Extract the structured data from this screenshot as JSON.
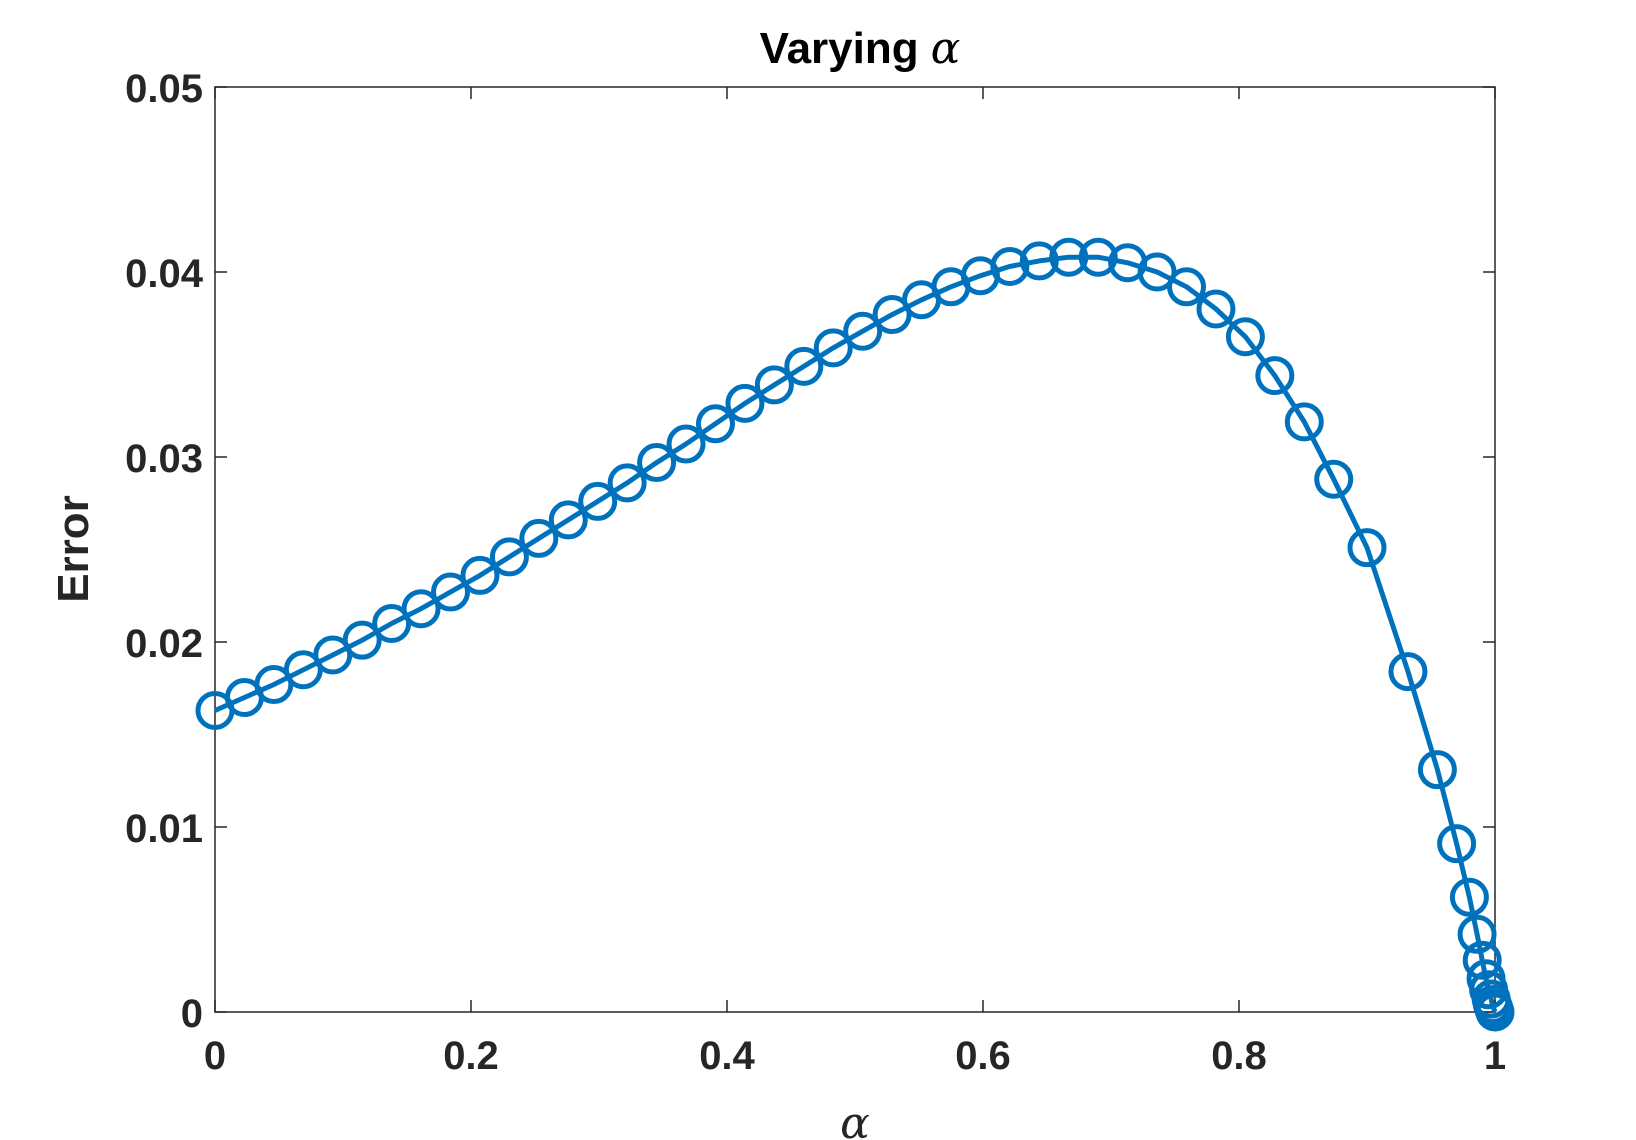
{
  "chart_data": {
    "type": "line",
    "title": "Varying",
    "title_symbol": "α",
    "xlabel": "α",
    "ylabel": "Error",
    "xlim": [
      0,
      1
    ],
    "ylim": [
      0,
      0.05
    ],
    "x_ticks": [
      0,
      0.2,
      0.4,
      0.6,
      0.8,
      1
    ],
    "x_tick_labels": [
      "0",
      "0.2",
      "0.4",
      "0.6",
      "0.8",
      "1"
    ],
    "y_ticks": [
      0,
      0.01,
      0.02,
      0.03,
      0.04,
      0.05
    ],
    "y_tick_labels": [
      "0",
      "0.01",
      "0.02",
      "0.03",
      "0.04",
      "0.05"
    ],
    "grid": false,
    "marker": "circle",
    "color": "#0072BD",
    "series": [
      {
        "x": [
          0,
          0.023,
          0.046,
          0.069,
          0.092,
          0.115,
          0.138,
          0.161,
          0.184,
          0.207,
          0.23,
          0.253,
          0.276,
          0.299,
          0.322,
          0.345,
          0.368,
          0.391,
          0.414,
          0.437,
          0.46,
          0.483,
          0.506,
          0.529,
          0.552,
          0.575,
          0.598,
          0.621,
          0.644,
          0.667,
          0.69,
          0.713,
          0.736,
          0.759,
          0.782,
          0.805,
          0.828,
          0.851,
          0.874,
          0.9,
          0.932,
          0.955,
          0.97,
          0.98,
          0.986,
          0.99,
          0.993,
          0.995,
          0.997,
          0.998,
          0.999,
          1.0
        ],
        "y": [
          0.0163,
          0.017,
          0.0177,
          0.0185,
          0.0193,
          0.0201,
          0.021,
          0.0218,
          0.0227,
          0.0236,
          0.0246,
          0.0256,
          0.0266,
          0.0276,
          0.0286,
          0.0297,
          0.0307,
          0.0318,
          0.0329,
          0.0339,
          0.0349,
          0.0359,
          0.0368,
          0.0377,
          0.0385,
          0.0392,
          0.0398,
          0.0403,
          0.0406,
          0.0408,
          0.0408,
          0.0405,
          0.04,
          0.0392,
          0.038,
          0.0365,
          0.0344,
          0.0319,
          0.0288,
          0.0251,
          0.0184,
          0.0131,
          0.0091,
          0.0062,
          0.0042,
          0.0028,
          0.0018,
          0.0012,
          0.0007,
          0.0004,
          0.0002,
          0.0
        ]
      }
    ]
  }
}
